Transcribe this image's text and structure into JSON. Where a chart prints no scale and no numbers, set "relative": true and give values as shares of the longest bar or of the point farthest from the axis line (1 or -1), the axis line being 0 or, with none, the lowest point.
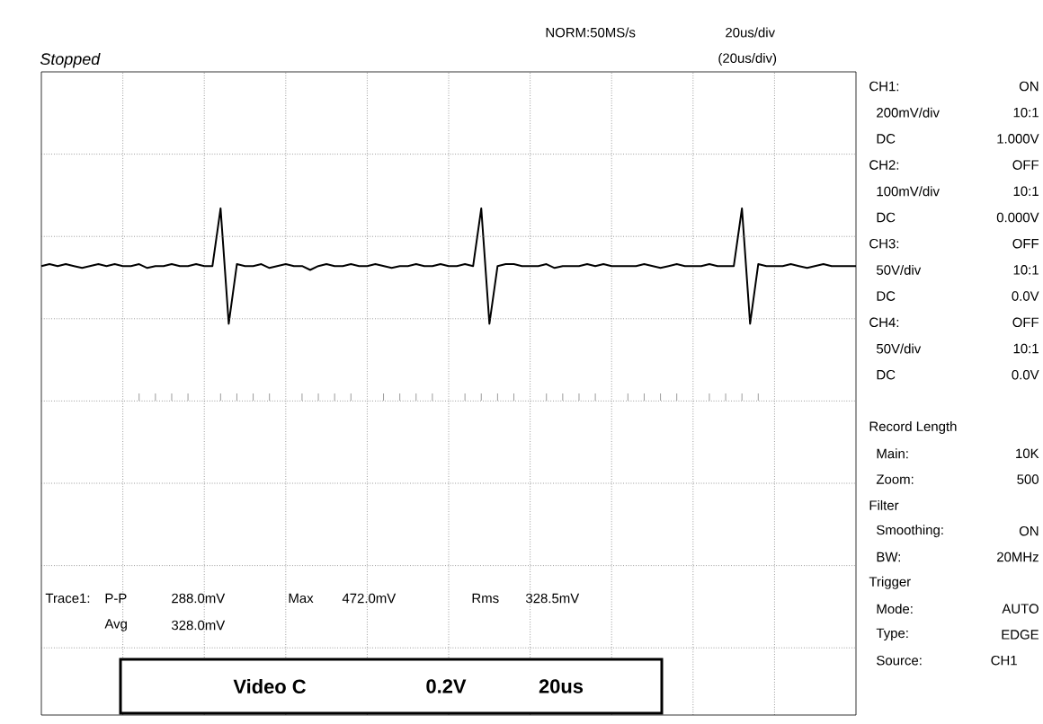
{
  "chart_data": {
    "type": "line",
    "title": "Stopped",
    "relative": true,
    "grid": true,
    "color": "#000000",
    "categories": [
      null,
      null,
      null,
      null,
      null,
      null,
      null,
      null,
      null,
      null,
      null,
      null,
      null,
      null,
      null,
      null,
      null,
      null,
      null,
      null,
      null,
      null,
      null,
      null,
      null,
      null,
      null,
      null,
      null,
      null,
      null,
      null,
      null,
      null,
      null,
      null,
      null,
      null,
      null,
      null,
      null,
      null,
      null,
      null,
      null,
      null,
      null,
      null,
      null,
      null,
      null,
      null,
      null,
      null,
      null,
      null,
      null,
      null,
      null,
      null,
      null,
      null,
      null,
      null,
      null,
      null,
      null,
      null,
      null,
      null,
      null,
      null,
      null,
      null,
      null,
      null,
      null,
      null,
      null,
      null,
      null,
      null,
      null,
      null,
      null,
      null,
      null,
      null,
      null,
      null,
      null,
      null,
      null,
      null,
      null,
      null,
      null,
      null,
      null,
      null,
      null
    ],
    "values": [
      0.7,
      0.71,
      0.7,
      0.71,
      0.7,
      0.69,
      0.7,
      0.71,
      0.7,
      0.71,
      0.7,
      0.7,
      0.71,
      0.69,
      0.7,
      0.7,
      0.71,
      0.7,
      0.7,
      0.71,
      0.7,
      0.7,
      1,
      0.4,
      0.71,
      0.7,
      0.7,
      0.71,
      0.69,
      0.7,
      0.71,
      0.7,
      0.7,
      0.68,
      0.7,
      0.71,
      0.7,
      0.7,
      0.71,
      0.7,
      0.7,
      0.71,
      0.7,
      0.69,
      0.7,
      0.7,
      0.71,
      0.7,
      0.7,
      0.71,
      0.7,
      0.7,
      0.71,
      0.7,
      1,
      0.4,
      0.7,
      0.71,
      0.71,
      0.7,
      0.7,
      0.7,
      0.71,
      0.69,
      0.7,
      0.7,
      0.7,
      0.71,
      0.7,
      0.71,
      0.7,
      0.7,
      0.7,
      0.7,
      0.71,
      0.7,
      0.69,
      0.7,
      0.71,
      0.7,
      0.7,
      0.7,
      0.71,
      0.7,
      0.7,
      0.7,
      1,
      0.4,
      0.71,
      0.7,
      0.7,
      0.7,
      0.71,
      0.7,
      0.69,
      0.7,
      0.71,
      0.7,
      0.7,
      0.7,
      0.7
    ],
    "annotations": [
      "NORM:50MS/s",
      "20us/div",
      "(20us/div)",
      "CH1:",
      "ON",
      "200mV/div",
      "10:1",
      "DC",
      "1.000V",
      "CH2:",
      "OFF",
      "100mV/div",
      "10:1",
      "DC",
      "0.000V",
      "CH3:",
      "OFF",
      "50V/div",
      "10:1",
      "DC",
      "0.0V",
      "CH4:",
      "OFF",
      "50V/div",
      "10:1",
      "DC",
      "0.0V",
      "Record Length",
      "Main:",
      "10K",
      "Zoom:",
      "500",
      "Filter",
      "Smoothing:",
      "ON",
      "BW:",
      "20MHz",
      "Trigger",
      "Mode:",
      "AUTO",
      "Type:",
      "EDGE",
      "Source:",
      "CH1",
      "Trace1:",
      "P-P",
      "288.0mV",
      "Max",
      "472.0mV",
      "Rms",
      "328.5mV",
      "Avg",
      "328.0mV",
      "Video C",
      "0.2V",
      "20us"
    ]
  }
}
